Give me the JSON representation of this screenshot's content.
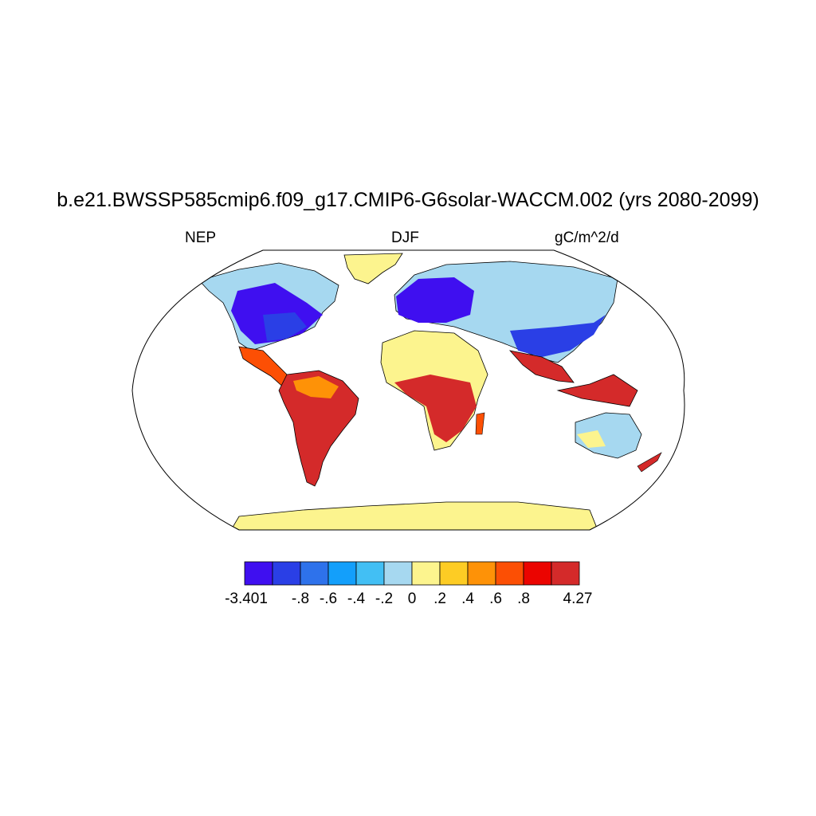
{
  "title": "b.e21.BWSSP585cmip6.f09_g17.CMIP6-G6solar-WACCM.002 (yrs 2080-2099)",
  "variable": "NEP",
  "season": "DJF",
  "units": "gC/m^2/d",
  "colorbar": {
    "colors": [
      "#3f0ff0",
      "#2a3fe6",
      "#2e72eb",
      "#139ffb",
      "#42bff4",
      "#a6d8f0",
      "#fcf48e",
      "#fdcc24",
      "#fe9207",
      "#fc4f04",
      "#eb0400",
      "#d42a2a"
    ],
    "labels": [
      "-3.401",
      "-.8",
      "-.6",
      "-.4",
      "-.2",
      "0",
      ".2",
      ".4",
      ".6",
      ".8",
      "4.27"
    ]
  },
  "map_projection": "Robinson",
  "map_regions": {
    "north_america": "strong negative (blue)",
    "europe_east_asia": "negative (blue)",
    "tropics_south_america_africa_se_asia": "strong positive (red)",
    "greenland_antarctica_sahara": "near zero (yellow)"
  }
}
